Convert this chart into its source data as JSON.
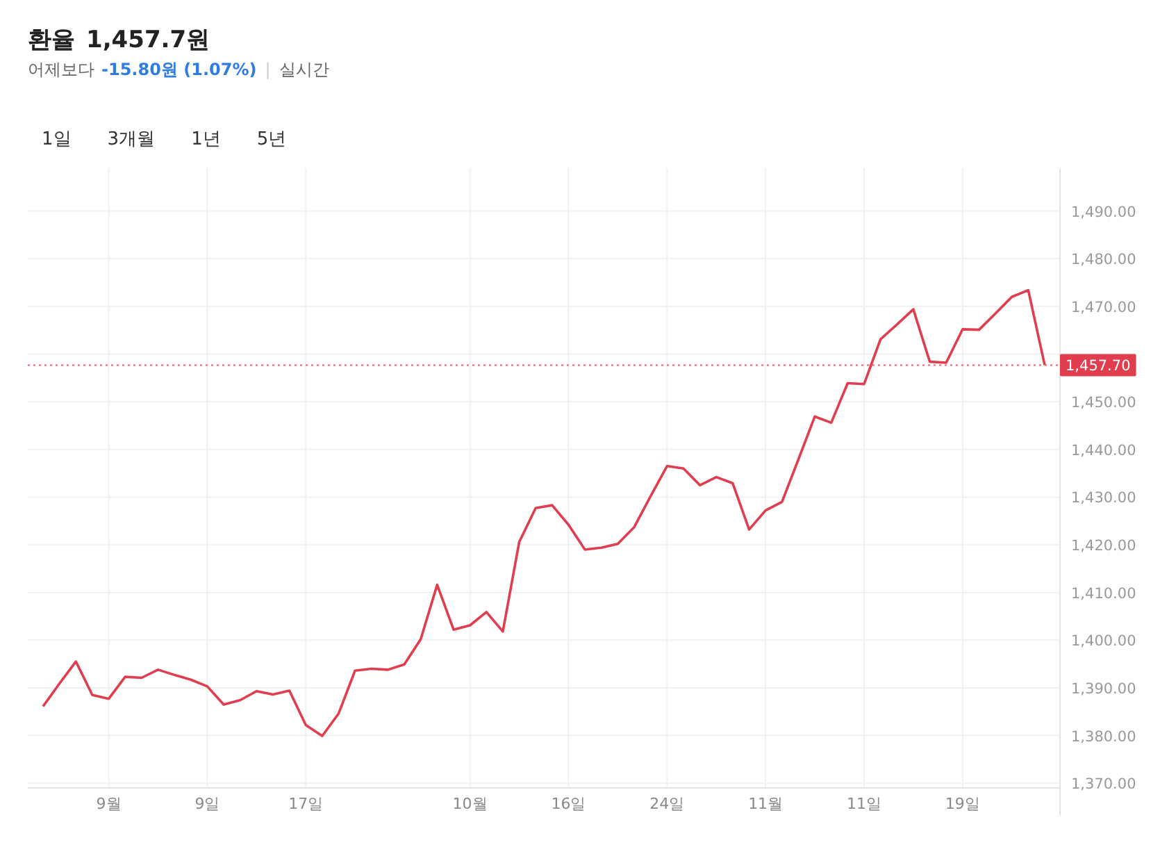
{
  "chart_data": {
    "type": "line",
    "title": "환율 1,457.7원",
    "subtitle": "어제보다 -15.80원 (1.07%) | 실시간",
    "annotations": [
      "1일",
      "3개월",
      "1년",
      "5년"
    ],
    "categories": [
      null,
      null,
      null,
      null,
      "9월",
      null,
      null,
      null,
      null,
      null,
      "9일",
      null,
      null,
      null,
      null,
      null,
      "17일",
      null,
      null,
      null,
      null,
      null,
      null,
      null,
      null,
      null,
      "10월",
      null,
      null,
      null,
      null,
      null,
      "16일",
      null,
      null,
      null,
      null,
      null,
      "24일",
      null,
      null,
      null,
      null,
      null,
      "11월",
      null,
      null,
      null,
      null,
      null,
      "11일",
      null,
      null,
      null,
      null,
      null,
      "19일",
      null,
      null,
      null,
      null,
      null
    ],
    "series": [
      {
        "color": "#e03e4e",
        "values": [
          1386.1,
          1390.9,
          1395.5,
          1388.5,
          1387.7,
          1392.3,
          1392.1,
          1393.8,
          1392.7,
          1391.7,
          1390.3,
          1386.5,
          1387.4,
          1389.3,
          1388.6,
          1389.4,
          1382.2,
          1379.9,
          1384.6,
          1393.6,
          1394.0,
          1393.8,
          1394.9,
          1400.2,
          1411.6,
          1402.2,
          1403.1,
          1405.9,
          1401.8,
          1420.6,
          1427.7,
          1428.3,
          1424.2,
          1419.0,
          1419.4,
          1420.2,
          1423.7,
          1430.2,
          1436.5,
          1436.0,
          1432.5,
          1434.2,
          1432.9,
          1423.2,
          1427.2,
          1429.0,
          1437.9,
          1446.9,
          1445.6,
          1453.9,
          1453.7,
          1463.1,
          1466.2,
          1469.4,
          1458.4,
          1458.2,
          1465.2,
          1465.1,
          1468.5,
          1472.0,
          1473.4,
          1457.7
        ]
      }
    ],
    "ylim": [
      1369,
      1499
    ],
    "yticks": [
      {
        "value": 1370,
        "label": "1,370.00"
      },
      {
        "value": 1380,
        "label": "1,380.00"
      },
      {
        "value": 1390,
        "label": "1,390.00"
      },
      {
        "value": 1400,
        "label": "1,400.00"
      },
      {
        "value": 1410,
        "label": "1,410.00"
      },
      {
        "value": 1420,
        "label": "1,420.00"
      },
      {
        "value": 1430,
        "label": "1,430.00"
      },
      {
        "value": 1440,
        "label": "1,440.00"
      },
      {
        "value": 1450,
        "label": "1,450.00"
      },
      {
        "value": 1460,
        "label": null
      },
      {
        "value": 1470,
        "label": "1,470.00"
      },
      {
        "value": 1480,
        "label": "1,480.00"
      },
      {
        "value": 1490,
        "label": "1,490.00"
      }
    ],
    "ref_lines": [
      {
        "axis": "y",
        "value": 1457.7,
        "label": "1,457.70",
        "color": "#e03e4e",
        "line_style": "dotted"
      }
    ],
    "grid": true,
    "marker": "none",
    "line_style": "solid"
  }
}
